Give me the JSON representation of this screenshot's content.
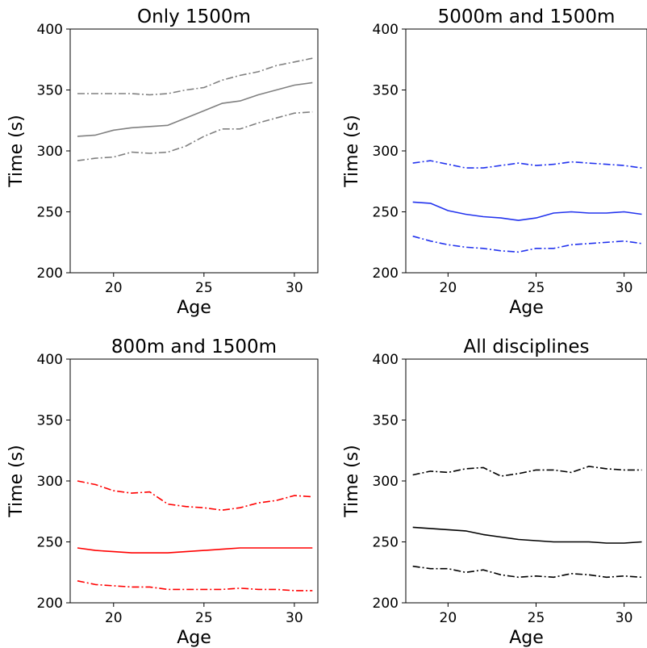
{
  "chart_data": [
    {
      "type": "line",
      "title": "Only 1500m",
      "xlabel": "Age",
      "ylabel": "Time (s)",
      "xlim": [
        17.6,
        31.3
      ],
      "ylim": [
        200,
        400
      ],
      "xticks": [
        20,
        25,
        30
      ],
      "yticks": [
        200,
        250,
        300,
        350,
        400
      ],
      "color": "#808080",
      "grid": false,
      "x": [
        18,
        19,
        20,
        21,
        22,
        23,
        24,
        25,
        26,
        27,
        28,
        29,
        30,
        31
      ],
      "series": [
        {
          "style": "dashdot",
          "values": [
            347,
            347,
            347,
            347,
            346,
            347,
            350,
            352,
            358,
            362,
            365,
            370,
            373,
            376
          ]
        },
        {
          "style": "solid",
          "values": [
            312,
            313,
            317,
            319,
            320,
            321,
            327,
            333,
            339,
            341,
            346,
            350,
            354,
            356
          ]
        },
        {
          "style": "dashdot",
          "values": [
            292,
            294,
            295,
            299,
            298,
            299,
            304,
            312,
            318,
            318,
            323,
            327,
            331,
            332
          ]
        }
      ]
    },
    {
      "type": "line",
      "title": "5000m and 1500m",
      "xlabel": "Age",
      "ylabel": "Time (s)",
      "xlim": [
        17.6,
        31.3
      ],
      "ylim": [
        200,
        400
      ],
      "xticks": [
        20,
        25,
        30
      ],
      "yticks": [
        200,
        250,
        300,
        350,
        400
      ],
      "color": "#2233ee",
      "grid": false,
      "x": [
        18,
        19,
        20,
        21,
        22,
        23,
        24,
        25,
        26,
        27,
        28,
        29,
        30,
        31
      ],
      "series": [
        {
          "style": "dashdot",
          "values": [
            290,
            292,
            289,
            286,
            286,
            288,
            290,
            288,
            289,
            291,
            290,
            289,
            288,
            286
          ]
        },
        {
          "style": "solid",
          "values": [
            258,
            257,
            251,
            248,
            246,
            245,
            243,
            245,
            249,
            250,
            249,
            249,
            250,
            248
          ]
        },
        {
          "style": "dashdot",
          "values": [
            230,
            226,
            223,
            221,
            220,
            218,
            217,
            220,
            220,
            223,
            224,
            225,
            226,
            224
          ]
        }
      ]
    },
    {
      "type": "line",
      "title": "800m and 1500m",
      "xlabel": "Age",
      "ylabel": "Time (s)",
      "xlim": [
        17.6,
        31.3
      ],
      "ylim": [
        200,
        400
      ],
      "xticks": [
        20,
        25,
        30
      ],
      "yticks": [
        200,
        250,
        300,
        350,
        400
      ],
      "color": "#ff0000",
      "grid": false,
      "x": [
        18,
        19,
        20,
        21,
        22,
        23,
        24,
        25,
        26,
        27,
        28,
        29,
        30,
        31
      ],
      "series": [
        {
          "style": "dashdot",
          "values": [
            300,
            297,
            292,
            290,
            291,
            281,
            279,
            278,
            276,
            278,
            282,
            284,
            288,
            287
          ]
        },
        {
          "style": "solid",
          "values": [
            245,
            243,
            242,
            241,
            241,
            241,
            242,
            243,
            244,
            245,
            245,
            245,
            245,
            245
          ]
        },
        {
          "style": "dashdot",
          "values": [
            218,
            215,
            214,
            213,
            213,
            211,
            211,
            211,
            211,
            212,
            211,
            211,
            210,
            210
          ]
        }
      ]
    },
    {
      "type": "line",
      "title": "All disciplines",
      "xlabel": "Age",
      "ylabel": "Time (s)",
      "xlim": [
        17.6,
        31.3
      ],
      "ylim": [
        200,
        400
      ],
      "xticks": [
        20,
        25,
        30
      ],
      "yticks": [
        200,
        250,
        300,
        350,
        400
      ],
      "color": "#000000",
      "grid": false,
      "x": [
        18,
        19,
        20,
        21,
        22,
        23,
        24,
        25,
        26,
        27,
        28,
        29,
        30,
        31
      ],
      "series": [
        {
          "style": "dashdot",
          "values": [
            305,
            308,
            307,
            310,
            311,
            304,
            306,
            309,
            309,
            307,
            312,
            310,
            309,
            309
          ]
        },
        {
          "style": "solid",
          "values": [
            262,
            261,
            260,
            259,
            256,
            254,
            252,
            251,
            250,
            250,
            250,
            249,
            249,
            250
          ]
        },
        {
          "style": "dashdot",
          "values": [
            230,
            228,
            228,
            225,
            227,
            223,
            221,
            222,
            221,
            224,
            223,
            221,
            222,
            221
          ]
        }
      ]
    }
  ]
}
